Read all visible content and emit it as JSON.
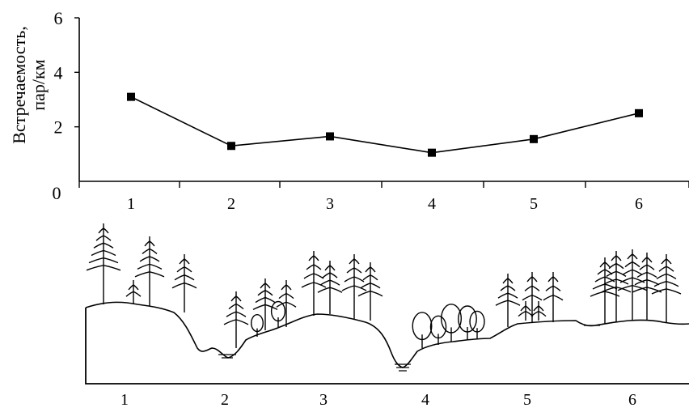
{
  "chart_data": {
    "type": "line",
    "ylabel_lines": [
      "Встречаемость,",
      "пар/км"
    ],
    "xlabel": "",
    "yticks": [
      "0",
      "2",
      "4",
      "6"
    ],
    "ylim": [
      0,
      6
    ],
    "categories": [
      "1",
      "2",
      "3",
      "4",
      "5",
      "6"
    ],
    "series": [
      {
        "values": [
          3.1,
          1.3,
          1.65,
          1.05,
          1.55,
          2.5
        ]
      }
    ],
    "grid": false,
    "marker": "square",
    "line_color": "#000000"
  },
  "profile": {
    "section_labels": [
      "1",
      "2",
      "3",
      "4",
      "5",
      "6"
    ]
  }
}
